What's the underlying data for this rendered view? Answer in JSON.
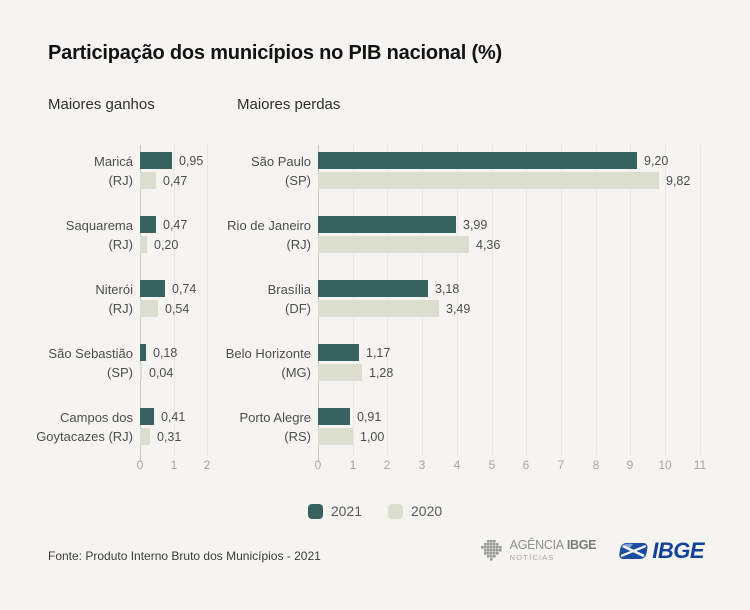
{
  "title": "Participação dos municípios no PIB nacional (%)",
  "legend": {
    "items": [
      {
        "label": "2021",
        "color": "#376260"
      },
      {
        "label": "2020",
        "color": "#dbdece"
      }
    ]
  },
  "source": "Fonte: Produto Interno Bruto dos Municípios - 2021",
  "footer": {
    "agencia_logo": {
      "name_regular": "AGÊNCIA",
      "name_bold": "IBGE",
      "subtitle": "NOTÍCIAS"
    },
    "ibge_logo": {
      "text": "IBGE"
    }
  },
  "chart_data": [
    {
      "type": "bar",
      "orientation": "horizontal",
      "title": "Maiores ganhos",
      "categories": [
        "Maricá (RJ)",
        "Saquarema (RJ)",
        "Niterói (RJ)",
        "São Sebastião (SP)",
        "Campos dos Goytacazes (RJ)"
      ],
      "category_lines": [
        [
          "Maricá",
          "(RJ)"
        ],
        [
          "Saquarema",
          "(RJ)"
        ],
        [
          "Niterói",
          "(RJ)"
        ],
        [
          "São Sebastião",
          "(SP)"
        ],
        [
          "Campos dos",
          "Goytacazes (RJ)"
        ]
      ],
      "series": [
        {
          "name": "2021",
          "color": "#376260",
          "values": [
            0.95,
            0.47,
            0.74,
            0.18,
            0.41
          ],
          "labels": [
            "0,95",
            "0,47",
            "0,74",
            "0,18",
            "0,41"
          ]
        },
        {
          "name": "2020",
          "color": "#dbdece",
          "values": [
            0.47,
            0.2,
            0.54,
            0.04,
            0.31
          ],
          "labels": [
            "0,47",
            "0,20",
            "0,54",
            "0,04",
            "0,31"
          ]
        }
      ],
      "xlim": [
        0,
        2
      ],
      "ticks": [
        "0",
        "1",
        "2"
      ],
      "grid": true,
      "legend_position": "bottom"
    },
    {
      "type": "bar",
      "orientation": "horizontal",
      "title": "Maiores perdas",
      "categories": [
        "São Paulo (SP)",
        "Rio de Janeiro (RJ)",
        "Brasília (DF)",
        "Belo Horizonte (MG)",
        "Porto Alegre (RS)"
      ],
      "category_lines": [
        [
          "São Paulo",
          "(SP)"
        ],
        [
          "Rio de Janeiro",
          "(RJ)"
        ],
        [
          "Brasília",
          "(DF)"
        ],
        [
          "Belo Horizonte",
          "(MG)"
        ],
        [
          "Porto Alegre",
          "(RS)"
        ]
      ],
      "series": [
        {
          "name": "2021",
          "color": "#376260",
          "values": [
            9.2,
            3.99,
            3.18,
            1.17,
            0.91
          ],
          "labels": [
            "9,20",
            "3,99",
            "3,18",
            "1,17",
            "0,91"
          ]
        },
        {
          "name": "2020",
          "color": "#dbdece",
          "values": [
            9.82,
            4.36,
            3.49,
            1.28,
            1.0
          ],
          "labels": [
            "9,82",
            "4,36",
            "3,49",
            "1,28",
            "1,00"
          ]
        }
      ],
      "xlim": [
        0,
        11
      ],
      "ticks": [
        "0",
        "1",
        "2",
        "3",
        "4",
        "5",
        "6",
        "7",
        "8",
        "9",
        "10",
        "11"
      ],
      "grid": true,
      "legend_position": "bottom"
    }
  ]
}
